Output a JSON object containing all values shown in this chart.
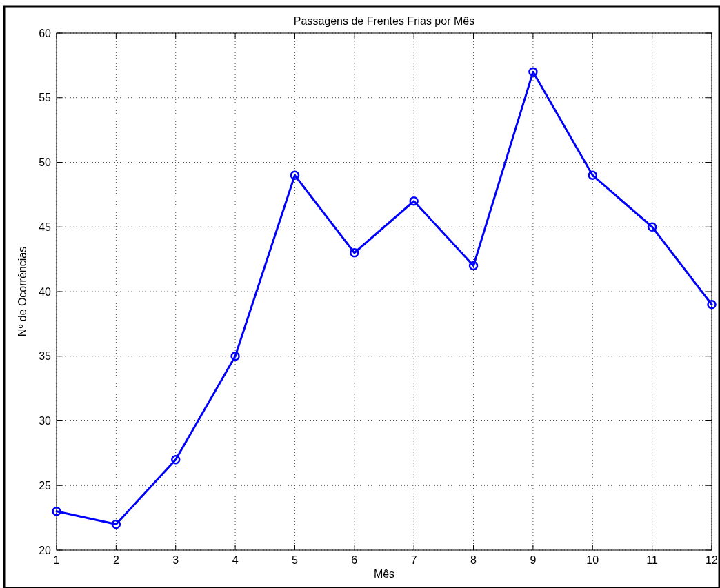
{
  "chart_data": {
    "type": "line",
    "title": "Passagens de Frentes Frias por Mês",
    "xlabel": "Mês",
    "ylabel": "Nº de Ocorrências",
    "x": [
      1,
      2,
      3,
      4,
      5,
      6,
      7,
      8,
      9,
      10,
      11,
      12
    ],
    "series": [
      {
        "color": "#0000ff",
        "values": [
          23,
          22,
          27,
          35,
          49,
          43,
          47,
          42,
          57,
          49,
          45,
          39
        ]
      }
    ],
    "xlim": [
      1,
      12
    ],
    "xticks": [
      1,
      2,
      3,
      4,
      5,
      6,
      7,
      8,
      9,
      10,
      11,
      12
    ],
    "ylim": [
      20,
      60
    ],
    "yticks": [
      20,
      25,
      30,
      35,
      40,
      45,
      50,
      55,
      60
    ],
    "grid": true,
    "marker": "circle",
    "line_style": "solid"
  }
}
